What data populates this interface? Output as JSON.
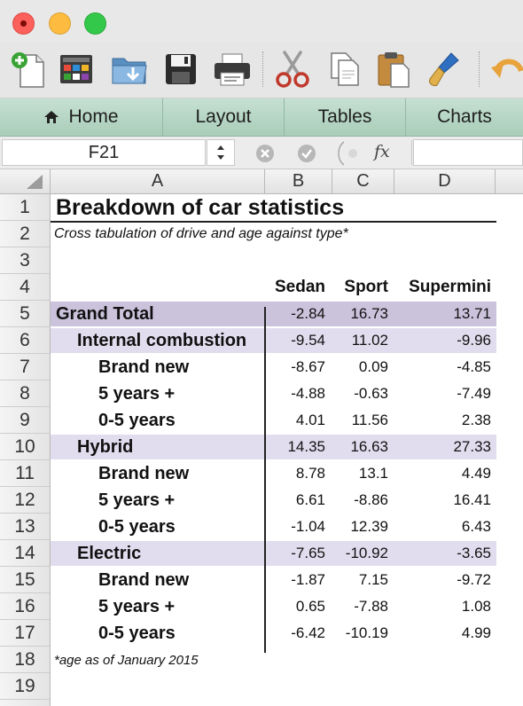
{
  "ribbon": {
    "tabs": [
      "Home",
      "Layout",
      "Tables",
      "Charts"
    ]
  },
  "formula_bar": {
    "name_box": "F21",
    "fx_label": "fx",
    "formula": ""
  },
  "grid": {
    "columns": [
      "A",
      "B",
      "C",
      "D"
    ],
    "rows": [
      "1",
      "2",
      "3",
      "4",
      "5",
      "6",
      "7",
      "8",
      "9",
      "10",
      "11",
      "12",
      "13",
      "14",
      "15",
      "16",
      "17",
      "18",
      "19"
    ]
  },
  "sheet": {
    "title": "Breakdown of car statistics",
    "subtitle": "Cross tabulation of drive and age against type*",
    "col_headers": [
      "Sedan",
      "Sport",
      "Supermini"
    ],
    "footnote": "*age as of January 2015",
    "rows": [
      {
        "label": "Grand Total",
        "values": [
          "-2.84",
          "16.73",
          "13.71"
        ]
      },
      {
        "label": "Internal combustion",
        "values": [
          "-9.54",
          "11.02",
          "-9.96"
        ]
      },
      {
        "label": "Brand new",
        "values": [
          "-8.67",
          "0.09",
          "-4.85"
        ]
      },
      {
        "label": "5 years +",
        "values": [
          "-4.88",
          "-0.63",
          "-7.49"
        ]
      },
      {
        "label": "0-5 years",
        "values": [
          "4.01",
          "11.56",
          "2.38"
        ]
      },
      {
        "label": "Hybrid",
        "values": [
          "14.35",
          "16.63",
          "27.33"
        ]
      },
      {
        "label": "Brand new",
        "values": [
          "8.78",
          "13.1",
          "4.49"
        ]
      },
      {
        "label": "5 years +",
        "values": [
          "6.61",
          "-8.86",
          "16.41"
        ]
      },
      {
        "label": "0-5 years",
        "values": [
          "-1.04",
          "12.39",
          "6.43"
        ]
      },
      {
        "label": "Electric",
        "values": [
          "-7.65",
          "-10.92",
          "-3.65"
        ]
      },
      {
        "label": "Brand new",
        "values": [
          "-1.87",
          "7.15",
          "-9.72"
        ]
      },
      {
        "label": "5 years +",
        "values": [
          "0.65",
          "-7.88",
          "1.08"
        ]
      },
      {
        "label": "0-5 years",
        "values": [
          "-6.42",
          "-10.19",
          "4.99"
        ]
      }
    ]
  },
  "colors": {
    "grand_total_fill": "#cbc3dc",
    "subtotal_fill": "#e2ddee",
    "ribbon": "#b4d4c2"
  },
  "icons": [
    "new-document-icon",
    "gallery-icon",
    "open-folder-icon",
    "save-icon",
    "print-icon",
    "cut-icon",
    "copy-icon",
    "paste-icon",
    "format-brush-icon",
    "undo-icon"
  ]
}
